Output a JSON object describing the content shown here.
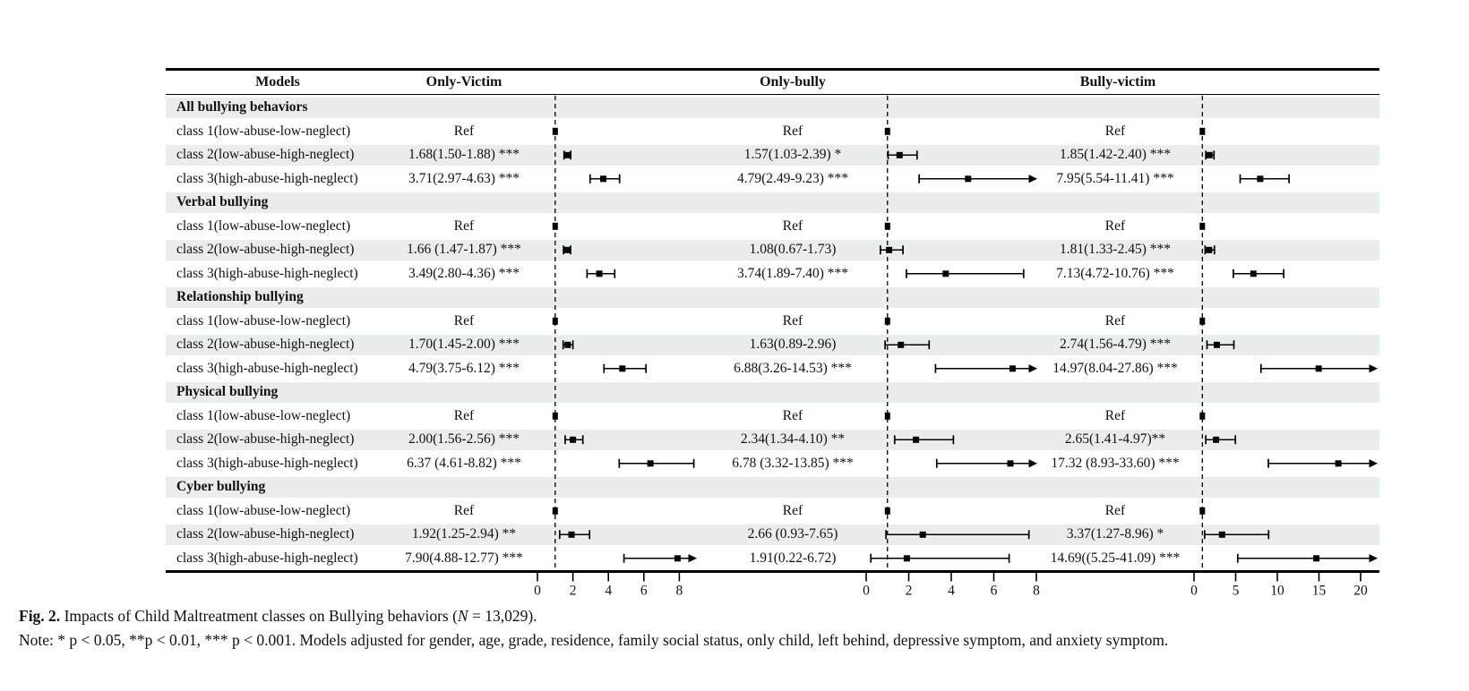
{
  "figure": {
    "columns": {
      "models": "Models",
      "outcomes": [
        "Only-Victim",
        "Only-bully",
        "Bully-victim"
      ]
    }
  },
  "chart_data": {
    "type": "forest",
    "title": "Impacts of Child Maltreatment classes on Bullying behaviors",
    "sample_size": "13,029",
    "ref_line_value": 1,
    "legend_position": "none",
    "grid": false,
    "outcomes": [
      "Only-Victim",
      "Only-bully",
      "Bully-victim"
    ],
    "axes": [
      {
        "ticks": [
          0,
          2,
          4,
          6,
          8
        ],
        "range": [
          0,
          9
        ]
      },
      {
        "ticks": [
          0,
          2,
          4,
          6,
          8
        ],
        "range": [
          0,
          8
        ]
      },
      {
        "ticks": [
          0,
          5,
          10,
          15,
          20
        ],
        "range": [
          0,
          22
        ]
      }
    ],
    "sections": [
      {
        "title": "All bullying behaviors",
        "rows": [
          {
            "label": "class 1(low-abuse-low-neglect)",
            "estimates": [
              {
                "text": "Ref",
                "ref": true
              },
              {
                "text": "Ref",
                "ref": true
              },
              {
                "text": "Ref",
                "ref": true
              }
            ]
          },
          {
            "label": "class 2(low-abuse-high-neglect)",
            "estimates": [
              {
                "text": "1.68(1.50-1.88) ***",
                "or": 1.68,
                "lo": 1.5,
                "hi": 1.88
              },
              {
                "text": "1.57(1.03-2.39) *",
                "or": 1.57,
                "lo": 1.03,
                "hi": 2.39
              },
              {
                "text": "1.85(1.42-2.40) ***",
                "or": 1.85,
                "lo": 1.42,
                "hi": 2.4
              }
            ]
          },
          {
            "label": "class 3(high-abuse-high-neglect)",
            "estimates": [
              {
                "text": "3.71(2.97-4.63) ***",
                "or": 3.71,
                "lo": 2.97,
                "hi": 4.63
              },
              {
                "text": "4.79(2.49-9.23) ***",
                "or": 4.79,
                "lo": 2.49,
                "hi": 9.23
              },
              {
                "text": "7.95(5.54-11.41) ***",
                "or": 7.95,
                "lo": 5.54,
                "hi": 11.41
              }
            ]
          }
        ]
      },
      {
        "title": "Verbal bullying",
        "rows": [
          {
            "label": "class 1(low-abuse-low-neglect)",
            "estimates": [
              {
                "text": "Ref",
                "ref": true
              },
              {
                "text": "Ref",
                "ref": true
              },
              {
                "text": "Ref",
                "ref": true
              }
            ]
          },
          {
            "label": "class 2(low-abuse-high-neglect)",
            "estimates": [
              {
                "text": "1.66 (1.47-1.87) ***",
                "or": 1.66,
                "lo": 1.47,
                "hi": 1.87
              },
              {
                "text": "1.08(0.67-1.73)",
                "or": 1.08,
                "lo": 0.67,
                "hi": 1.73
              },
              {
                "text": "1.81(1.33-2.45) ***",
                "or": 1.81,
                "lo": 1.33,
                "hi": 2.45
              }
            ]
          },
          {
            "label": "class 3(high-abuse-high-neglect)",
            "estimates": [
              {
                "text": "3.49(2.80-4.36) ***",
                "or": 3.49,
                "lo": 2.8,
                "hi": 4.36
              },
              {
                "text": "3.74(1.89-7.40) ***",
                "or": 3.74,
                "lo": 1.89,
                "hi": 7.4
              },
              {
                "text": "7.13(4.72-10.76) ***",
                "or": 7.13,
                "lo": 4.72,
                "hi": 10.76
              }
            ]
          }
        ]
      },
      {
        "title": "Relationship bullying",
        "rows": [
          {
            "label": "class 1(low-abuse-low-neglect)",
            "estimates": [
              {
                "text": "Ref",
                "ref": true
              },
              {
                "text": "Ref",
                "ref": true
              },
              {
                "text": "Ref",
                "ref": true
              }
            ]
          },
          {
            "label": "class 2(low-abuse-high-neglect)",
            "estimates": [
              {
                "text": "1.70(1.45-2.00) ***",
                "or": 1.7,
                "lo": 1.45,
                "hi": 2.0
              },
              {
                "text": "1.63(0.89-2.96)",
                "or": 1.63,
                "lo": 0.89,
                "hi": 2.96
              },
              {
                "text": "2.74(1.56-4.79) ***",
                "or": 2.74,
                "lo": 1.56,
                "hi": 4.79
              }
            ]
          },
          {
            "label": "class 3(high-abuse-high-neglect)",
            "estimates": [
              {
                "text": "4.79(3.75-6.12) ***",
                "or": 4.79,
                "lo": 3.75,
                "hi": 6.12
              },
              {
                "text": "6.88(3.26-14.53) ***",
                "or": 6.88,
                "lo": 3.26,
                "hi": 14.53
              },
              {
                "text": "14.97(8.04-27.86) ***",
                "or": 14.97,
                "lo": 8.04,
                "hi": 27.86
              }
            ]
          }
        ]
      },
      {
        "title": "Physical bullying",
        "rows": [
          {
            "label": "class 1(low-abuse-low-neglect)",
            "estimates": [
              {
                "text": "Ref",
                "ref": true
              },
              {
                "text": "Ref",
                "ref": true
              },
              {
                "text": "Ref",
                "ref": true
              }
            ]
          },
          {
            "label": "class 2(low-abuse-high-neglect)",
            "estimates": [
              {
                "text": "2.00(1.56-2.56) ***",
                "or": 2.0,
                "lo": 1.56,
                "hi": 2.56
              },
              {
                "text": "2.34(1.34-4.10) **",
                "or": 2.34,
                "lo": 1.34,
                "hi": 4.1
              },
              {
                "text": "2.65(1.41-4.97)**",
                "or": 2.65,
                "lo": 1.41,
                "hi": 4.97
              }
            ]
          },
          {
            "label": "class 3(high-abuse-high-neglect)",
            "estimates": [
              {
                "text": "6.37 (4.61-8.82) ***",
                "or": 6.37,
                "lo": 4.61,
                "hi": 8.82
              },
              {
                "text": "6.78 (3.32-13.85) ***",
                "or": 6.78,
                "lo": 3.32,
                "hi": 13.85
              },
              {
                "text": "17.32 (8.93-33.60) ***",
                "or": 17.32,
                "lo": 8.93,
                "hi": 33.6
              }
            ]
          }
        ]
      },
      {
        "title": "Cyber bullying",
        "rows": [
          {
            "label": "class 1(low-abuse-low-neglect)",
            "estimates": [
              {
                "text": "Ref",
                "ref": true
              },
              {
                "text": "Ref",
                "ref": true
              },
              {
                "text": "Ref",
                "ref": true
              }
            ]
          },
          {
            "label": "class 2(low-abuse-high-neglect)",
            "estimates": [
              {
                "text": "1.92(1.25-2.94) **",
                "or": 1.92,
                "lo": 1.25,
                "hi": 2.94
              },
              {
                "text": "2.66 (0.93-7.65)",
                "or": 2.66,
                "lo": 0.93,
                "hi": 7.65
              },
              {
                "text": "3.37(1.27-8.96) *",
                "or": 3.37,
                "lo": 1.27,
                "hi": 8.96
              }
            ]
          },
          {
            "label": "class 3(high-abuse-high-neglect)",
            "estimates": [
              {
                "text": "7.90(4.88-12.77) ***",
                "or": 7.9,
                "lo": 4.88,
                "hi": 12.77
              },
              {
                "text": "1.91(0.22-6.72)",
                "or": 1.91,
                "lo": 0.22,
                "hi": 6.72
              },
              {
                "text": "14.69((5.25-41.09) ***",
                "or": 14.69,
                "lo": 5.25,
                "hi": 41.09
              }
            ]
          }
        ]
      }
    ]
  },
  "caption": {
    "label": "Fig. 2.",
    "text_pre": " Impacts of Child Maltreatment classes on Bullying behaviors (",
    "n_symbol": "N",
    "text_post": " = 13,029)."
  },
  "note": {
    "text": "Note: * p < 0.05, **p < 0.01, *** p < 0.001. Models adjusted for gender, age, grade, residence, family social status, only child, left behind, depressive symptom, and anxiety symptom."
  }
}
